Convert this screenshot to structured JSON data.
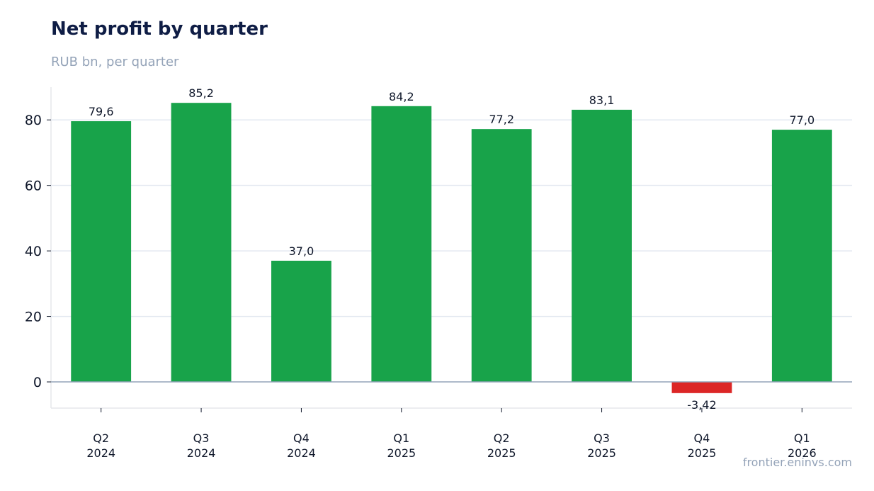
{
  "header": {
    "title": "Net profit by quarter",
    "subtitle": "RUB bn, per quarter"
  },
  "footer": {
    "source": "frontier.eninvs.com"
  },
  "colors": {
    "positive": "#18a34a",
    "negative": "#dc2626",
    "grid": "#e2e8f0",
    "zero_line": "#94a3b8"
  },
  "chart_data": {
    "type": "bar",
    "title": "Net profit by quarter",
    "subtitle": "RUB bn, per quarter",
    "categories": [
      [
        "Q2",
        "2024"
      ],
      [
        "Q3",
        "2024"
      ],
      [
        "Q4",
        "2024"
      ],
      [
        "Q1",
        "2025"
      ],
      [
        "Q2",
        "2025"
      ],
      [
        "Q3",
        "2025"
      ],
      [
        "Q4",
        "2025"
      ],
      [
        "Q1",
        "2026"
      ]
    ],
    "values": [
      79.6,
      85.2,
      37.0,
      84.2,
      77.2,
      83.1,
      -3.42,
      77.0
    ],
    "data_labels": [
      "79,6",
      "85,2",
      "37,0",
      "84,2",
      "77,2",
      "83,1",
      "-3,42",
      "77,0"
    ],
    "ylim": [
      -8,
      90
    ],
    "yticks": [
      0,
      20,
      40,
      60,
      80
    ],
    "grid": true,
    "legend": "none"
  }
}
